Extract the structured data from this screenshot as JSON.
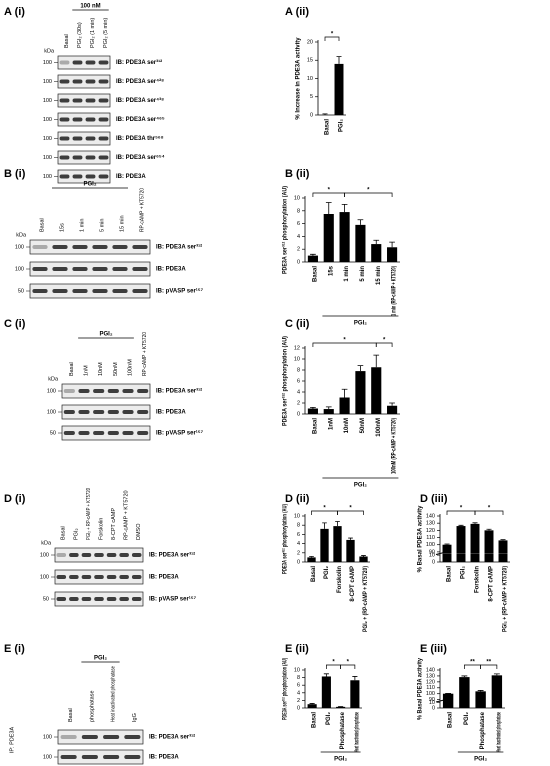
{
  "blots": [
    {
      "title": "A (i)",
      "header": "100 nM",
      "kda": "kDa",
      "lanes": [
        "Basal",
        "PGI₂ (30s)",
        "PGI₂ (1 min)",
        "PGI₂ (5 min)"
      ],
      "rows": [
        {
          "marker": 100,
          "label": "IB: PDE3A ser³¹²"
        },
        {
          "marker": 100,
          "label": "IB: PDE3A ser⁴²⁸"
        },
        {
          "marker": 100,
          "label": "IB: PDE3A ser⁴³⁸"
        },
        {
          "marker": 100,
          "label": "IB: PDE3A ser⁴⁶⁵"
        },
        {
          "marker": 100,
          "label": "IB: PDE3A thr⁵⁶⁸"
        },
        {
          "marker": 100,
          "label": "IB: PDE3A ser⁶⁵⁴"
        },
        {
          "marker": 100,
          "label": "IB: PDE3A"
        }
      ]
    },
    {
      "title": "B (i)",
      "header": "PGI₂",
      "kda": "kDa",
      "lanes": [
        "Basal",
        "15s",
        "1 min",
        "5 min",
        "15 min",
        "RP-cAMP + KT5720"
      ],
      "rows": [
        {
          "marker": 100,
          "label": "IB: PDE3A ser³¹²"
        },
        {
          "marker": 100,
          "label": "IB: PDE3A"
        },
        {
          "marker": 50,
          "label": "IB: pVASP ser¹⁵⁷"
        }
      ]
    },
    {
      "title": "C (i)",
      "header": "PGI₂",
      "kda": "kDa",
      "lanes": [
        "Basal",
        "1nM",
        "10nM",
        "50nM",
        "100nM",
        "RP-cAMP + KT5720"
      ],
      "rows": [
        {
          "marker": 100,
          "label": "IB: PDE3A ser³¹²"
        },
        {
          "marker": 100,
          "label": "IB: PDE3A"
        },
        {
          "marker": 50,
          "label": "IB: pVASP ser¹⁵⁷"
        }
      ]
    },
    {
      "title": "D (i)",
      "kda": "kDa",
      "lanes": [
        "Basal",
        "PGI₂",
        "PGI₂ + RP-cAMP + KT5720",
        "Forskolin",
        "8-CPT cAMP",
        "RP-cAMP + KT5720",
        "DMSO"
      ],
      "rows": [
        {
          "marker": 100,
          "label": "IB: PDE3A ser³¹²"
        },
        {
          "marker": 100,
          "label": "IB: PDE3A"
        },
        {
          "marker": 50,
          "label": "IB: pVASP ser¹⁵⁷"
        }
      ]
    },
    {
      "title": "E (i)",
      "header": "PGI₂",
      "ip": "IP: PDE3A",
      "lanes": [
        "Basal",
        "phosphatase",
        "Heat inactivated phosphatase",
        "IgG"
      ],
      "rows": [
        {
          "marker": 100,
          "label": "IB: PDE3A ser³¹²"
        },
        {
          "marker": 100,
          "label": "IB: PDE3A"
        }
      ]
    }
  ],
  "chart_data": [
    {
      "type": "bar",
      "title": "A (ii)",
      "ylabel": "% Increase in PDE3A activity",
      "color": "#000000",
      "categories": [
        "Basal",
        "PGI₂"
      ],
      "values": [
        0,
        14
      ],
      "errors": [
        0.3,
        2
      ],
      "ylim": [
        0,
        20
      ],
      "yticks": [
        0,
        5,
        10,
        15,
        20
      ],
      "significance": [
        "*"
      ]
    },
    {
      "type": "bar",
      "title": "B (ii)",
      "ylabel": "PDE3A ser³¹² phosphorylation (AU)",
      "color": "#000000",
      "group_label": "PGI₂",
      "categories": [
        "Basal",
        "15s",
        "1 min",
        "5 min",
        "15 min",
        "1 min (RP-cAMP + KT5720)"
      ],
      "values": [
        1,
        7.5,
        7.8,
        5.8,
        2.8,
        2.3
      ],
      "errors": [
        0.2,
        1.8,
        1.2,
        0.8,
        0.6,
        0.8
      ],
      "ylim": [
        0,
        10
      ],
      "yticks": [
        0,
        2,
        4,
        6,
        8,
        10
      ],
      "significance": [
        "*",
        "*"
      ]
    },
    {
      "type": "bar",
      "title": "C (ii)",
      "ylabel": "PDE3A ser³¹² phosphorylation (AU)",
      "color": "#000000",
      "group_label": "PGI₂",
      "categories": [
        "Basal",
        "1nM",
        "10nM",
        "50nM",
        "100nM",
        "100nM (RP-cAMP + KT5720)"
      ],
      "values": [
        1,
        0.9,
        3,
        7.8,
        8.5,
        1.5
      ],
      "errors": [
        0.2,
        0.4,
        1.5,
        1,
        2.2,
        0.5
      ],
      "ylim": [
        0,
        12
      ],
      "yticks": [
        0,
        2,
        4,
        6,
        8,
        10,
        12
      ],
      "significance": [
        "*",
        "*"
      ]
    },
    {
      "type": "bar",
      "title": "D (ii)",
      "ylabel": "PDE3A ser³¹² phosphorylation (AU)",
      "color": "#000000",
      "categories": [
        "Basal",
        "PGI₂",
        "Forskolin",
        "8-CPT cAMP",
        "PGI₂ + (RP-cAMP + KT5720)"
      ],
      "values": [
        1,
        7.2,
        7.8,
        4.8,
        1.2
      ],
      "errors": [
        0.2,
        1.3,
        1,
        0.4,
        0.2
      ],
      "ylim": [
        0,
        10
      ],
      "yticks": [
        0,
        2,
        4,
        6,
        8,
        10
      ],
      "significance": [
        "*",
        "*"
      ]
    },
    {
      "type": "bar",
      "title": "D (iii)",
      "ylabel": "% Basal PDE3A activity",
      "color": "#000000",
      "categories": [
        "Basal",
        "PGI₂",
        "Forskolin",
        "8-CPT cAMP",
        "PGI₂ + (RP-cAMP + KT5720)"
      ],
      "values": [
        100,
        126,
        129,
        120,
        106
      ],
      "errors": [
        1,
        1,
        1.5,
        1.5,
        1
      ],
      "ylim": [
        0,
        140
      ],
      "ybreak": [
        10,
        90
      ],
      "yticks": [
        0,
        10,
        90,
        100,
        110,
        120,
        130,
        140
      ],
      "significance": [
        "*",
        "*"
      ]
    },
    {
      "type": "bar",
      "title": "E (ii)",
      "ylabel": "PDE3A ser³¹² phosphorylation (AU)",
      "color": "#000000",
      "group_label": "PGI₂",
      "categories": [
        "Basal",
        "PGI₂",
        "Phosphatase",
        "Heat inactivated phosphatase"
      ],
      "values": [
        1,
        8.3,
        0.3,
        7.3
      ],
      "errors": [
        0.2,
        0.7,
        0.1,
        1
      ],
      "ylim": [
        0,
        10
      ],
      "yticks": [
        0,
        2,
        4,
        6,
        8,
        10
      ],
      "significance": [
        "*",
        "*"
      ]
    },
    {
      "type": "bar",
      "title": "E (iii)",
      "ylabel": "% Basal PDE3A activity",
      "color": "#000000",
      "group_label": "PGI₂",
      "categories": [
        "Basal",
        "PGI₂",
        "Phosphatase",
        "Heat inactivated phosphatase"
      ],
      "values": [
        100,
        128,
        104,
        131
      ],
      "errors": [
        0.5,
        2,
        1.5,
        2.5
      ],
      "ylim": [
        0,
        140
      ],
      "ybreak": [
        10,
        90
      ],
      "yticks": [
        0,
        10,
        90,
        100,
        110,
        120,
        130,
        140
      ],
      "significance": [
        "**",
        "**"
      ]
    }
  ]
}
